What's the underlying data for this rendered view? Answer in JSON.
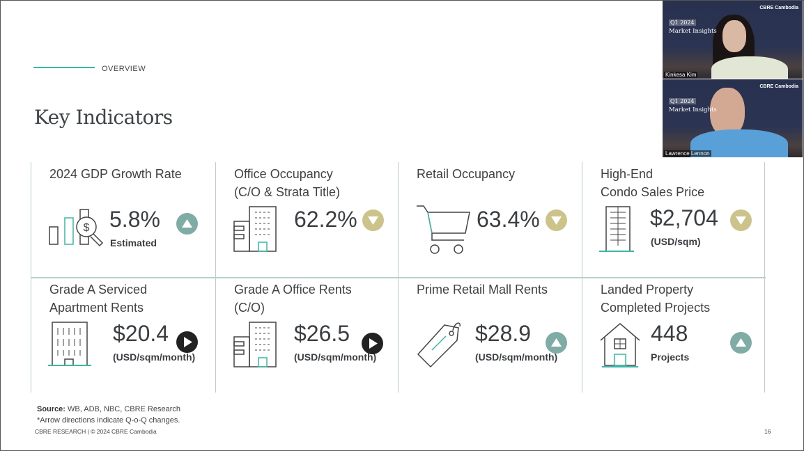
{
  "header": {
    "section": "OVERVIEW",
    "title": "Key Indicators"
  },
  "indicators": [
    {
      "label1": "2024 GDP Growth Rate",
      "label2": "",
      "value": "5.8%",
      "sub": "Estimated",
      "arrow": "up",
      "icon": "chart-dollar-magnifier-icon"
    },
    {
      "label1": "Office Occupancy",
      "label2": "(C/O & Strata Title)",
      "value": "62.2%",
      "sub": "",
      "arrow": "down",
      "icon": "office-building-icon"
    },
    {
      "label1": "Retail Occupancy",
      "label2": "",
      "value": "63.4%",
      "sub": "",
      "arrow": "down",
      "icon": "shopping-cart-icon"
    },
    {
      "label1": "High-End",
      "label2": "Condo Sales Price",
      "value": "$2,704",
      "sub": "(USD/sqm)",
      "arrow": "down",
      "icon": "condo-tower-icon"
    },
    {
      "label1": "Grade A Serviced",
      "label2": "Apartment Rents",
      "value": "$20.4",
      "sub": "(USD/sqm/month)",
      "arrow": "right",
      "icon": "apartment-building-icon"
    },
    {
      "label1": "Grade A Office Rents",
      "label2": "(C/O)",
      "value": "$26.5",
      "sub": "(USD/sqm/month)",
      "arrow": "right",
      "icon": "office-building-icon"
    },
    {
      "label1": "Prime Retail Mall Rents",
      "label2": "",
      "value": "$28.9",
      "sub": "(USD/sqm/month)",
      "arrow": "up",
      "icon": "price-tag-icon"
    },
    {
      "label1": "Landed Property",
      "label2": "Completed Projects",
      "value": "448",
      "sub": "Projects",
      "arrow": "up",
      "icon": "house-icon"
    }
  ],
  "colors": {
    "up": "#7fada5",
    "down": "#cbc38a",
    "right": "#222222",
    "accent": "#3ab7a5"
  },
  "footer": {
    "source_label": "Source:",
    "source": " WB, ADB, NBC, CBRE Research",
    "note": "*Arrow directions indicate Q-o-Q changes.",
    "copyright": "CBRE RESEARCH | © 2024 CBRE Cambodia",
    "page": "16"
  },
  "video": [
    {
      "brand": "CBRE Cambodia",
      "quarter": "Q1 2024",
      "series": "Market Insights",
      "name": "Kinkesa Kim"
    },
    {
      "brand": "CBRE Cambodia",
      "quarter": "Q1 2024",
      "series": "Market Insights",
      "name": "Lawrence Lennon"
    }
  ]
}
